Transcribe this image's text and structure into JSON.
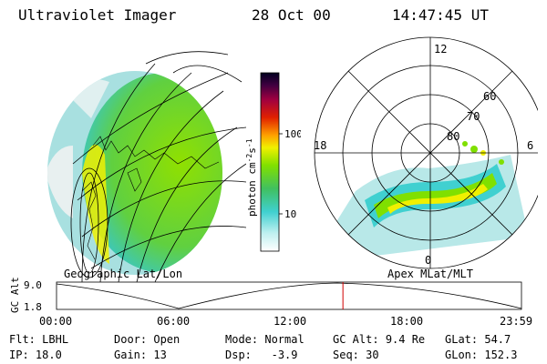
{
  "header": {
    "instrument": "Ultraviolet Imager",
    "date": "28 Oct 00",
    "time": "14:47:45 UT"
  },
  "colorbar": {
    "unit_label": "photon cm",
    "unit_exp1": "-2",
    "unit_s": "s",
    "unit_exp2": "-1",
    "ticks": [
      "100",
      "10"
    ]
  },
  "left_panel": {
    "label": "Geographic Lat/Lon"
  },
  "right_panel": {
    "label": "Apex MLat/MLT",
    "mlt_labels": {
      "top": "12",
      "left": "18",
      "right": "6",
      "bottom": "0"
    },
    "lat_labels": [
      "60",
      "70",
      "80"
    ]
  },
  "timeline": {
    "ylabel": "GC Alt",
    "y_max": "9.0",
    "y_min": "1.8",
    "x_ticks": [
      "00:00",
      "06:00",
      "12:00",
      "18:00",
      "23:59"
    ],
    "current_time_fraction": 0.616
  },
  "status": {
    "filter_label": "Flt:",
    "filter_value": "LBHL",
    "ip_label": "IP:",
    "ip_value": "18.0",
    "door_label": "Door:",
    "door_value": "Open",
    "gain_label": "Gain:",
    "gain_value": "13",
    "mode_label": "Mode:",
    "mode_value": "Normal",
    "dsp_label": "Dsp:",
    "dsp_value": "-3.9",
    "gcalt_label": "GC Alt:",
    "gcalt_value": "9.4 Re",
    "seq_label": "Seq:",
    "seq_value": "30",
    "glat_label": "GLat:",
    "glat_value": "54.7",
    "glon_label": "GLon:",
    "glon_value": "152.3"
  },
  "colors": {
    "green": "#80e000",
    "yellow": "#f0f000",
    "cyan": "#40d0d0",
    "orange": "#ff9000",
    "red": "#d00000"
  }
}
